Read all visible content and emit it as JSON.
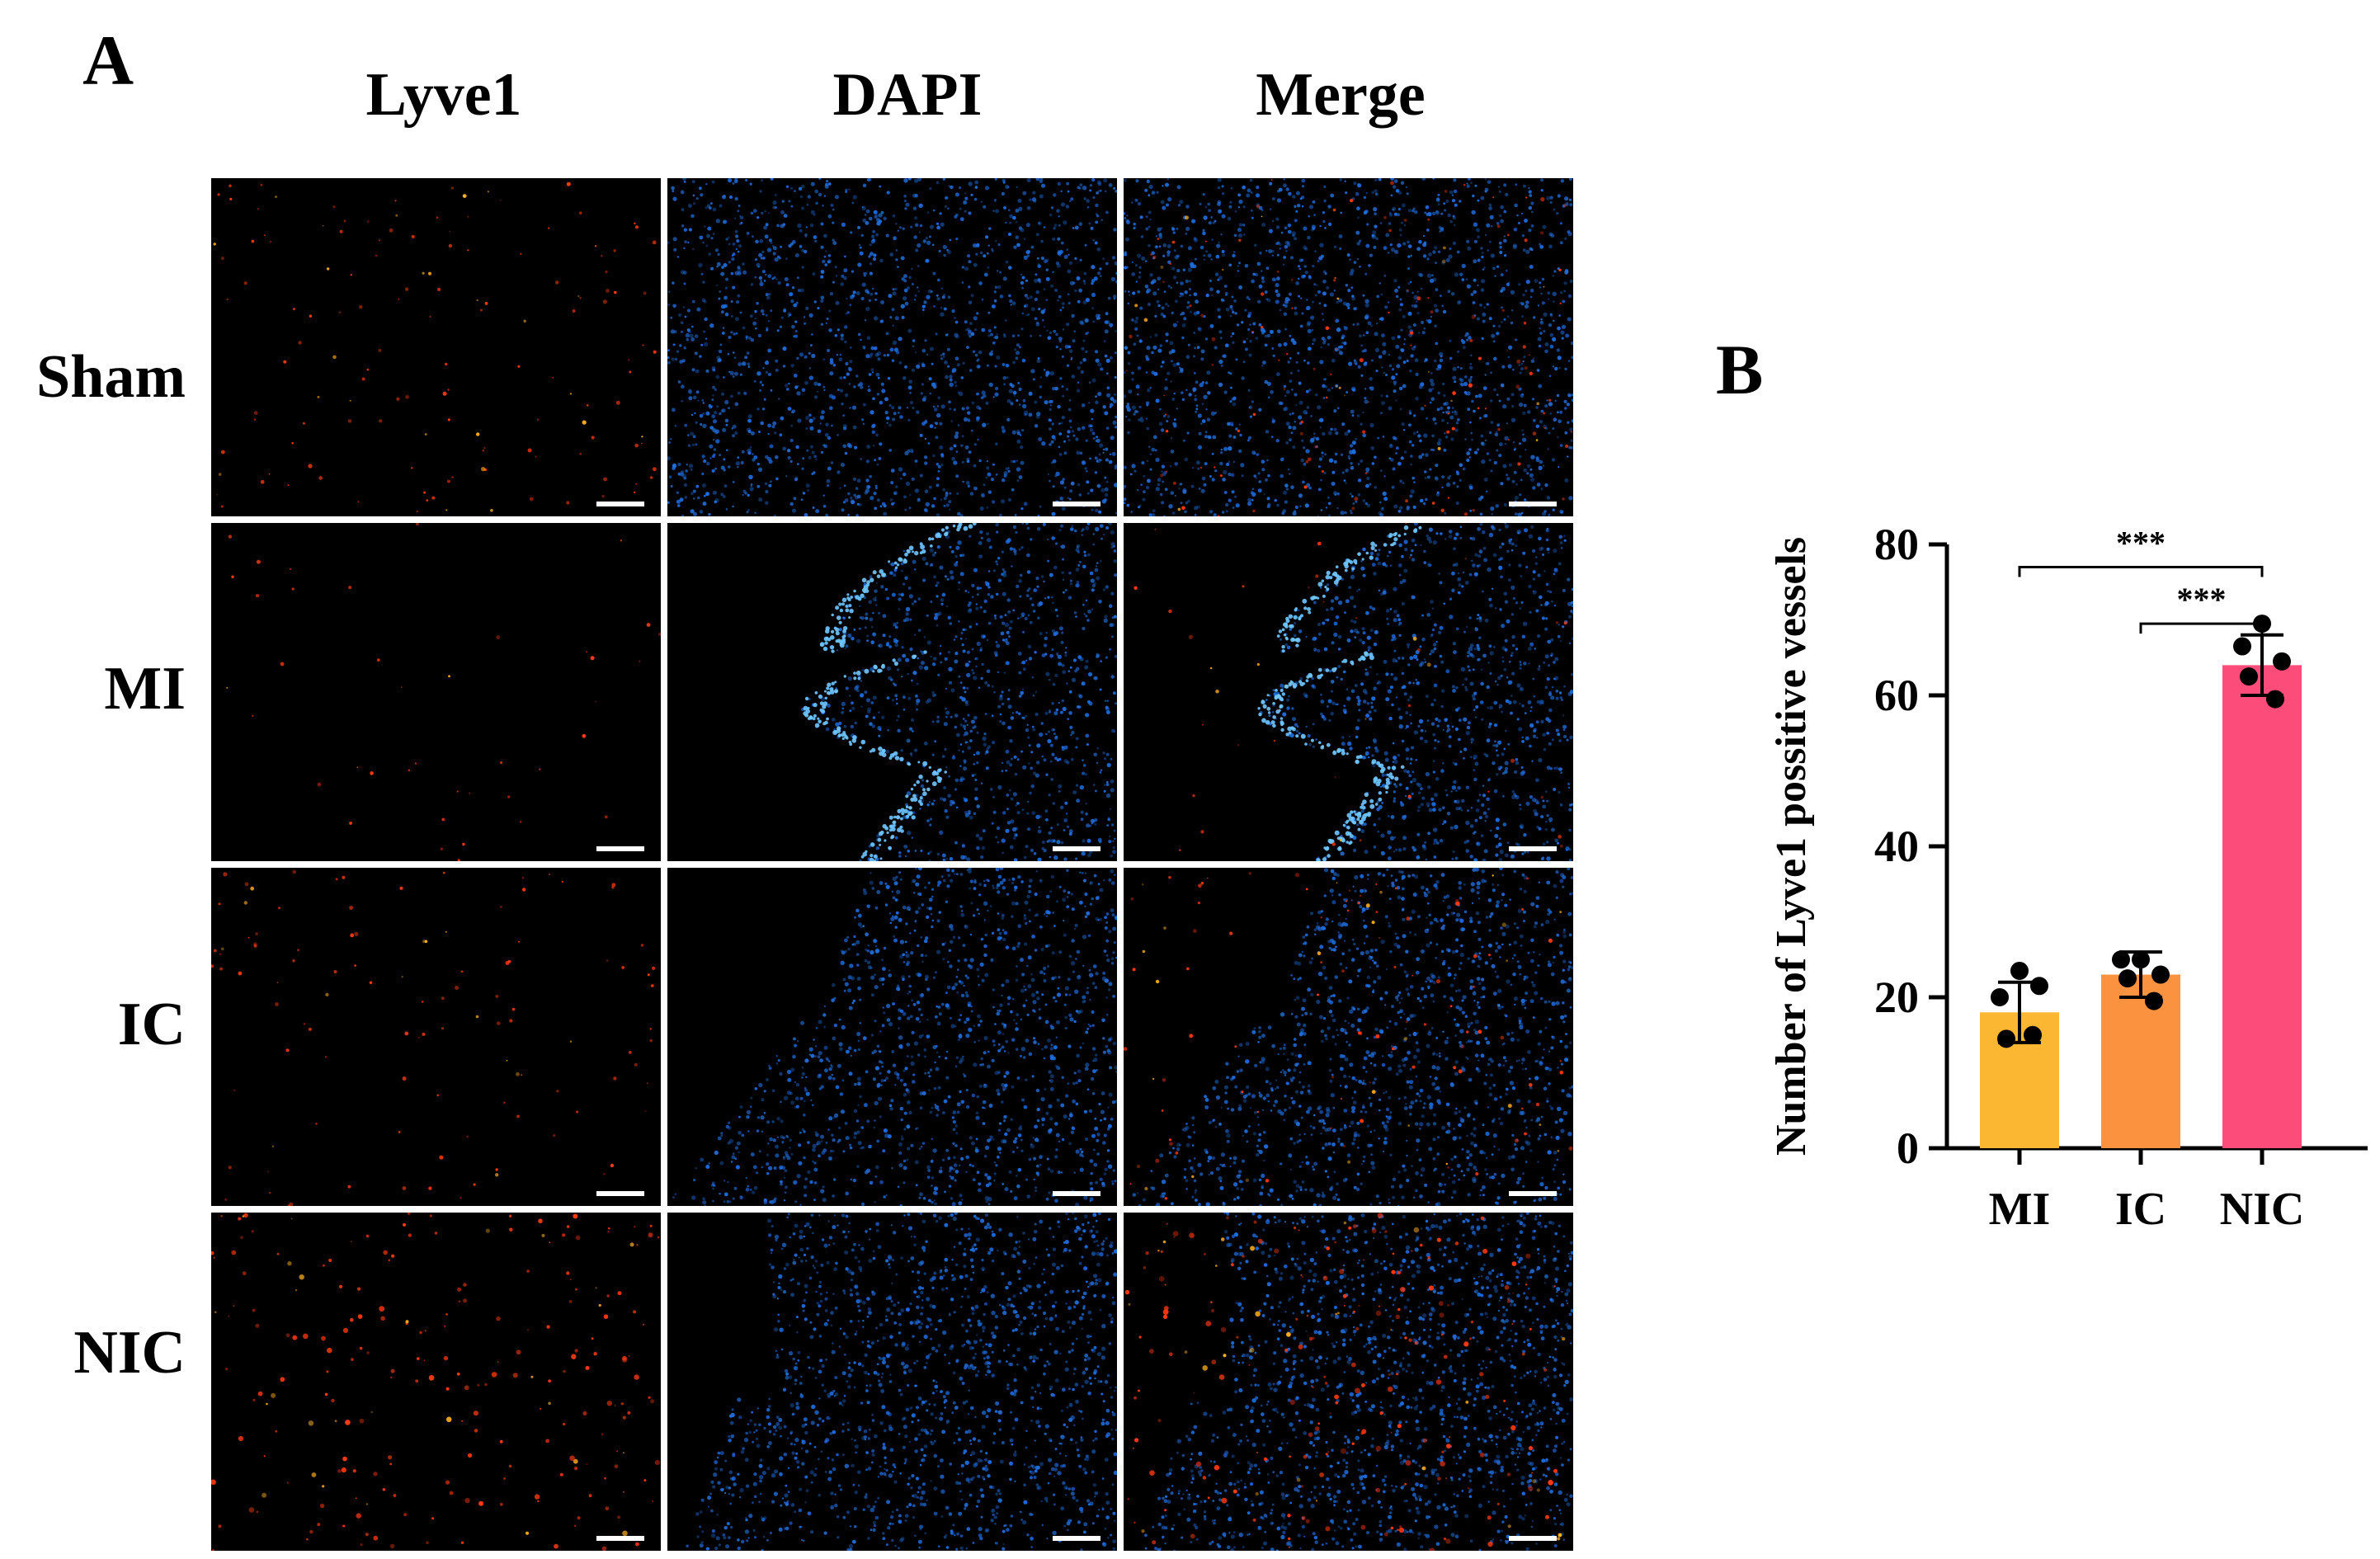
{
  "panels": {
    "a_letter": "A",
    "b_letter": "B"
  },
  "columns": [
    "Lyve1",
    "DAPI",
    "Merge"
  ],
  "rows": [
    "Sham",
    "MI",
    "IC",
    "NIC"
  ],
  "colors": {
    "lyve1_signal": "#ff3a10",
    "dapi_signal": "#1f6fe0",
    "scale_bar": "#ffffff",
    "bar_MI": "#fbb731",
    "bar_IC": "#fb9240",
    "bar_NIC": "#fc4d7a"
  },
  "chart_data": {
    "type": "bar",
    "categories": [
      "MI",
      "IC",
      "NIC"
    ],
    "values": [
      18,
      23,
      64
    ],
    "error": [
      4,
      3,
      4
    ],
    "points": [
      [
        23.5,
        20,
        21.5,
        14.5,
        15
      ],
      [
        25,
        25,
        23,
        22.5,
        19.5
      ],
      [
        69.5,
        66.5,
        64.5,
        62.5,
        59.5
      ]
    ],
    "ylabel": "Number of Lyve1 possitive vessels",
    "ylim": [
      0,
      80
    ],
    "yticks": [
      0,
      20,
      40,
      60,
      80
    ],
    "significance": [
      {
        "pair": [
          "MI",
          "NIC"
        ],
        "label": "***"
      },
      {
        "pair": [
          "IC",
          "NIC"
        ],
        "label": "***"
      }
    ]
  }
}
